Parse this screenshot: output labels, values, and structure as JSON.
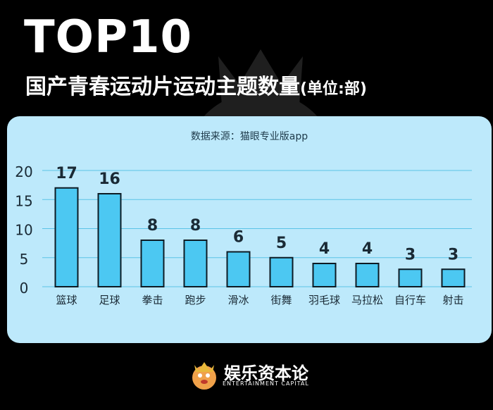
{
  "header": {
    "title": "TOP10",
    "subtitle": "国产青春运动片运动主题数量",
    "unit_note": "(单位:部)"
  },
  "source_note": "数据来源：猫眼专业版app",
  "brand": {
    "name": "娱乐资本论",
    "english": "ENTERTAINMENT CAPITAL"
  },
  "colors": {
    "background": "#000000",
    "panel": "#bde9fb",
    "bar_fill": "#4cc8f2",
    "bar_stroke": "#0d1b24",
    "gridline": "#5bc3e6",
    "text_dark": "#1a2a35"
  },
  "chart_data": {
    "type": "bar",
    "title": "国产青春运动片运动主题数量",
    "categories": [
      "篮球",
      "足球",
      "拳击",
      "跑步",
      "滑冰",
      "街舞",
      "羽毛球",
      "马拉松",
      "自行车",
      "射击"
    ],
    "values": [
      17,
      16,
      8,
      8,
      6,
      5,
      4,
      4,
      3,
      3
    ],
    "ylim": [
      0,
      20
    ],
    "yticks": [
      0,
      5,
      10,
      15,
      20
    ],
    "grid": true,
    "xlabel": "",
    "ylabel": ""
  }
}
